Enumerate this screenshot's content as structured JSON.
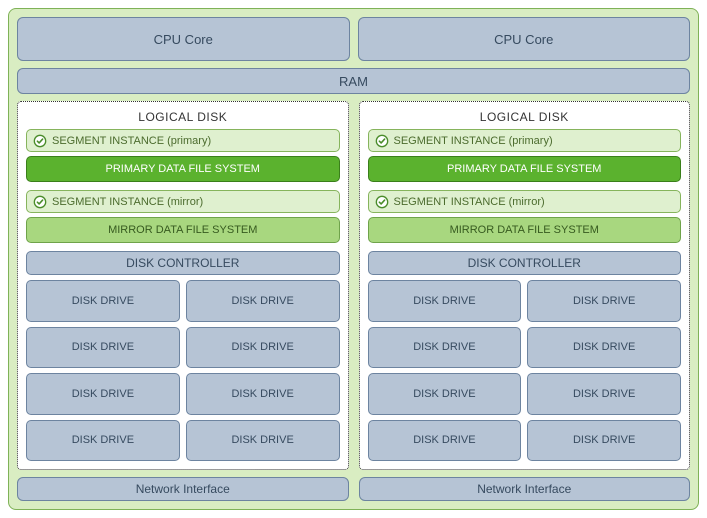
{
  "colors": {
    "outer_bg": "#d9edc2",
    "outer_border": "#7fb257",
    "blue_bg": "#b6c4d5",
    "blue_border": "#6d84a0",
    "blue_text": "#364a5f",
    "logical_border": "#333333",
    "logical_title": "#333333",
    "seg_bg": "#dff0cf",
    "seg_border": "#86b45c",
    "seg_text": "#4b6b2d",
    "primary_fs_bg": "#5bb22e",
    "primary_fs_border": "#3a7f1a",
    "mirror_fs_bg": "#a8d77f",
    "mirror_fs_border": "#6fa34a",
    "mirror_fs_text": "#365a1f",
    "check_stroke": "#4a8c2a",
    "check_fill": "#ffffff"
  },
  "cpu": {
    "left": "CPU Core",
    "right": "CPU Core"
  },
  "ram": "RAM",
  "logical": {
    "title": "LOGICAL DISK",
    "seg_primary": "SEGMENT INSTANCE (primary)",
    "fs_primary": "PRIMARY DATA FILE SYSTEM",
    "seg_mirror": "SEGMENT INSTANCE (mirror)",
    "fs_mirror": "MIRROR DATA FILE SYSTEM",
    "disk_controller": "DISK CONTROLLER",
    "drive": "DISK DRIVE"
  },
  "network": "Network Interface"
}
